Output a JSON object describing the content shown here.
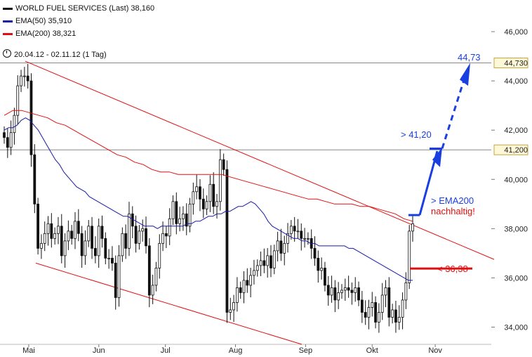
{
  "legend": {
    "main": "WORLD FUEL SERVICES (Last) 38,160",
    "ema50": "EMA(50) 35,910",
    "ema200": "EMA(200) 38,321"
  },
  "period": "20.04.12 - 02.11.12 (1 Tag)",
  "colors": {
    "price": "#111111",
    "ema50": "#1a1aa8",
    "ema200": "#e01010",
    "target": "#1a3fe0",
    "support": "#e01010"
  },
  "chart_data": {
    "type": "candlestick",
    "x_labels": [
      "Mai",
      "Jun",
      "Jul",
      "Aug",
      "Sep",
      "Okt",
      "Nov"
    ],
    "y_ticks": [
      "34,000",
      "36,000",
      "38,000",
      "40,000",
      "42,000",
      "44,000",
      "46,000"
    ],
    "y_tick_values": [
      34,
      36,
      38,
      40,
      42,
      44,
      46
    ],
    "ylim": [
      33.3,
      47.0
    ],
    "x_count": 140,
    "x_label_index": [
      7,
      27,
      46,
      66,
      86,
      105,
      123
    ],
    "series_close": [
      41.7,
      41.3,
      41.9,
      42.6,
      43.8,
      44.2,
      44.2,
      44.0,
      41.0,
      39.0,
      37.2,
      37.4,
      37.8,
      38.2,
      37.6,
      37.8,
      38.1,
      36.9,
      37.5,
      37.9,
      37.6,
      38.3,
      37.8,
      36.9,
      37.5,
      38.1,
      37.2,
      36.9,
      38.1,
      37.6,
      36.8,
      36.8,
      36.6,
      35.2,
      36.9,
      37.8,
      37.2,
      38.6,
      38.1,
      37.4,
      37.9,
      38.0,
      37.3,
      35.3,
      35.7,
      36.4,
      37.4,
      37.8,
      37.7,
      38.4,
      39.1,
      38.2,
      38.4,
      38.6,
      38.1,
      39.0,
      39.5,
      39.7,
      39.2,
      38.8,
      39.1,
      39.8,
      38.9,
      39.1,
      40.8,
      40.4,
      34.6,
      34.7,
      35.0,
      35.6,
      35.4,
      35.9,
      35.7,
      36.1,
      36.3,
      36.5,
      36.7,
      36.5,
      36.9,
      36.4,
      37.1,
      37.5,
      37.0,
      37.4,
      37.8,
      38.1,
      37.9,
      37.9,
      37.6,
      37.6,
      37.6,
      37.2,
      36.8,
      36.3,
      36.4,
      35.7,
      35.3,
      35.6,
      35.1,
      35.4,
      35.5,
      35.6,
      35.5,
      35.4,
      35.6,
      35.1,
      34.6,
      34.4,
      34.8,
      35.0,
      34.2,
      34.6,
      35.3,
      35.6,
      34.4,
      34.7,
      34.2,
      34.4,
      35.1,
      35.8,
      37.9,
      38.2
    ],
    "series_ema50": [
      42.0,
      42.1,
      42.1,
      42.2,
      42.4,
      42.5,
      42.4,
      42.2,
      42.0,
      41.7,
      41.4,
      41.1,
      40.8,
      40.6,
      40.3,
      40.1,
      39.9,
      39.7,
      39.6,
      39.5,
      39.3,
      39.2,
      39.1,
      39.0,
      38.9,
      38.8,
      38.7,
      38.6,
      38.5,
      38.5,
      38.4,
      38.3,
      38.2,
      38.1,
      38.1,
      38.1,
      38.0,
      38.1,
      38.1,
      38.1,
      38.1,
      38.1,
      38.1,
      38.2,
      38.2,
      38.3,
      38.3,
      38.4,
      38.5,
      38.5,
      38.6,
      38.6,
      38.7,
      38.7,
      38.8,
      38.9,
      38.9,
      39.0,
      39.1,
      39.0,
      38.8,
      38.6,
      38.3,
      38.1,
      38.0,
      37.9,
      37.8,
      37.7,
      37.6,
      37.6,
      37.5,
      37.5,
      37.4,
      37.4,
      37.3,
      37.3,
      37.3,
      37.3,
      37.3,
      37.3,
      37.3,
      37.2,
      37.2,
      37.1,
      37.0,
      36.9,
      36.8,
      36.7,
      36.6,
      36.5,
      36.4,
      36.3,
      36.2,
      36.1,
      36.0,
      35.9,
      35.9
    ],
    "series_ema200": [
      42.6,
      42.8,
      42.8,
      42.7,
      42.6,
      42.5,
      42.3,
      42.2,
      42.0,
      41.8,
      41.6,
      41.4,
      41.2,
      41.0,
      40.9,
      40.7,
      40.6,
      40.4,
      40.3,
      40.3,
      40.2,
      40.2,
      40.2,
      40.2,
      40.2,
      40.2,
      40.1,
      40.0,
      39.9,
      39.8,
      39.7,
      39.6,
      39.5,
      39.4,
      39.3,
      39.2,
      39.2,
      39.1,
      39.0,
      39.0,
      39.0,
      38.9,
      38.9,
      38.8,
      38.7,
      38.6,
      38.4,
      38.3
    ],
    "levels": [
      {
        "value": 44.73,
        "label": "44,730"
      },
      {
        "value": 41.2,
        "label": "41,200"
      }
    ],
    "annotations": {
      "target_top": "44,73",
      "target_mid": "> 41,20",
      "ema200_break_1": "> EMA200",
      "ema200_break_2": "nachhaltig!",
      "stop": "< 36,38"
    }
  }
}
